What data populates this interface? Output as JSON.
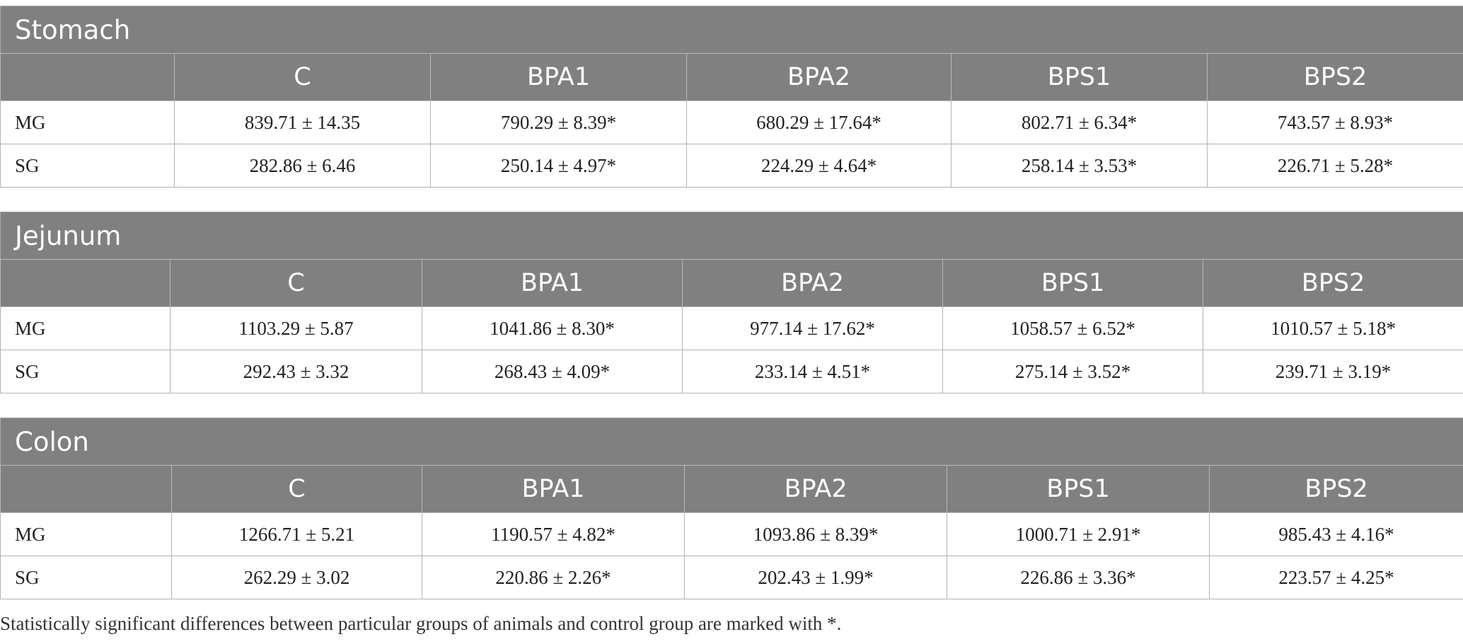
{
  "columns": [
    "",
    "C",
    "BPA1",
    "BPA2",
    "BPS1",
    "BPS2"
  ],
  "sections": [
    {
      "title": "Stomach",
      "rows": [
        {
          "label": "MG",
          "values": [
            "839.71 ± 14.35",
            "790.29 ± 8.39*",
            "680.29 ± 17.64*",
            "802.71 ± 6.34*",
            "743.57 ± 8.93*"
          ]
        },
        {
          "label": "SG",
          "values": [
            "282.86 ± 6.46",
            "250.14 ± 4.97*",
            "224.29 ± 4.64*",
            "258.14 ± 3.53*",
            "226.71 ± 5.28*"
          ]
        }
      ]
    },
    {
      "title": "Jejunum",
      "rows": [
        {
          "label": "MG",
          "values": [
            "1103.29 ± 5.87",
            "1041.86 ± 8.30*",
            "977.14 ± 17.62*",
            "1058.57 ± 6.52*",
            "1010.57 ± 5.18*"
          ]
        },
        {
          "label": "SG",
          "values": [
            "292.43 ± 3.32",
            "268.43 ± 4.09*",
            "233.14 ± 4.51*",
            "275.14 ± 3.52*",
            "239.71 ± 3.19*"
          ]
        }
      ]
    },
    {
      "title": "Colon",
      "rows": [
        {
          "label": "MG",
          "values": [
            "1266.71 ± 5.21",
            "1190.57 ± 4.82*",
            "1093.86 ± 8.39*",
            "1000.71 ± 2.91*",
            "985.43 ± 4.16*"
          ]
        },
        {
          "label": "SG",
          "values": [
            "262.29 ± 3.02",
            "220.86 ± 2.26*",
            "202.43 ± 1.99*",
            "226.86 ± 3.36*",
            "223.57 ± 4.25*"
          ]
        }
      ]
    }
  ],
  "footnote": "Statistically significant differences between particular groups of animals and control group are marked with *."
}
